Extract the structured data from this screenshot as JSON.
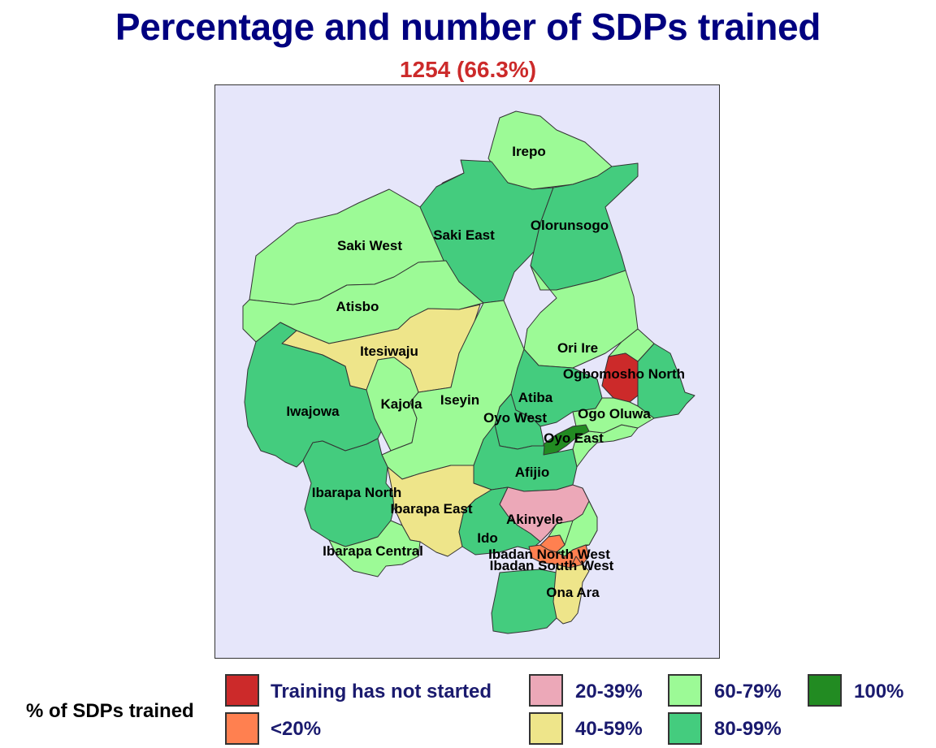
{
  "title": "Percentage and number of SDPs trained",
  "subtitle": "1254 (66.3%)",
  "colors": {
    "not_started": "#cc2a2a",
    "lt20": "#ff8050",
    "p20_39": "#eca8b8",
    "p40_59": "#eee58a",
    "p60_79": "#9cfa96",
    "p80_99": "#44cc7e",
    "p100": "#228b22"
  },
  "map": {
    "regions": [
      {
        "name": "Irepo",
        "category": "p60_79"
      },
      {
        "name": "Saki West",
        "category": "p60_79"
      },
      {
        "name": "Saki East",
        "category": "p80_99"
      },
      {
        "name": "Olorunsogo",
        "category": "p80_99"
      },
      {
        "name": "Atisbo",
        "category": "p60_79"
      },
      {
        "name": "Itesiwaju",
        "category": "p40_59"
      },
      {
        "name": "Ori Ire",
        "category": "p60_79"
      },
      {
        "name": "Ogbomosho North",
        "category": "not_started"
      },
      {
        "name": "Iwajowa",
        "category": "p80_99"
      },
      {
        "name": "Kajola",
        "category": "p60_79"
      },
      {
        "name": "Iseyin",
        "category": "p60_79"
      },
      {
        "name": "Atiba",
        "category": "p80_99"
      },
      {
        "name": "Oyo West",
        "category": "p80_99"
      },
      {
        "name": "Ogo Oluwa",
        "category": "p60_79"
      },
      {
        "name": "Oyo East",
        "category": "p100"
      },
      {
        "name": "Afijio",
        "category": "p80_99"
      },
      {
        "name": "Ibarapa North",
        "category": "p80_99"
      },
      {
        "name": "Ibarapa East",
        "category": "p40_59"
      },
      {
        "name": "Akinyele",
        "category": "p20_39"
      },
      {
        "name": "Ido",
        "category": "p80_99"
      },
      {
        "name": "Ibarapa Central",
        "category": "p60_79"
      },
      {
        "name": "Ibadan North West",
        "category": "lt20"
      },
      {
        "name": "Ibadan South West",
        "category": "lt20"
      },
      {
        "name": "Ona Ara",
        "category": "p40_59"
      }
    ]
  },
  "legend": {
    "title": "% of SDPs trained",
    "items": [
      {
        "label": "Training has not started",
        "category": "not_started"
      },
      {
        "label": "<20%",
        "category": "lt20"
      },
      {
        "label": "20-39%",
        "category": "p20_39"
      },
      {
        "label": "40-59%",
        "category": "p40_59"
      },
      {
        "label": "60-79%",
        "category": "p60_79"
      },
      {
        "label": "80-99%",
        "category": "p80_99"
      },
      {
        "label": "100%",
        "category": "p100"
      }
    ]
  }
}
